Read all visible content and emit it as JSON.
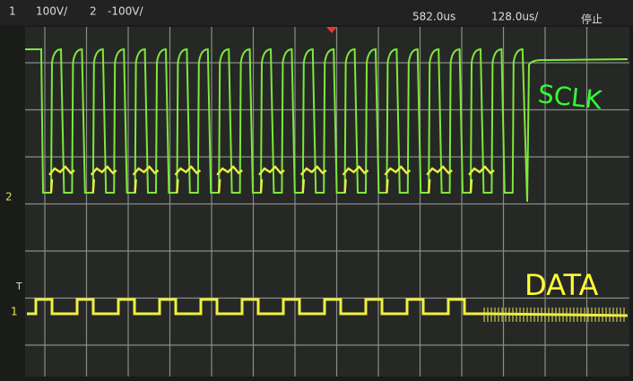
{
  "status_bar": {
    "ch1": "1",
    "ch1_scale": "100V/",
    "ch2": "2",
    "ch2_scale": "-100V/",
    "trigger_position": "582.0us",
    "time_scale": "128.0us/",
    "run_state": "停止"
  },
  "markers": {
    "ch2": "2",
    "trigger": "T",
    "ch1": "1"
  },
  "annotations": {
    "clock": "SCLK",
    "data": "DATA"
  }
}
